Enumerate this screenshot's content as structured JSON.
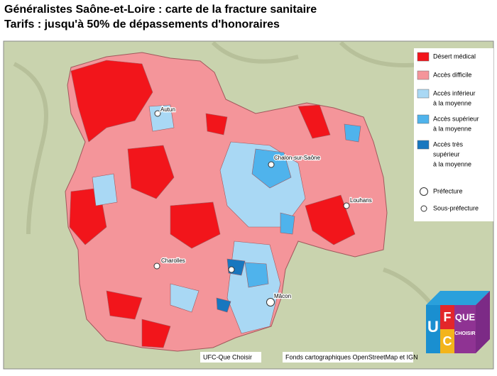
{
  "header": {
    "title": "Généralistes Saône-et-Loire : carte de la fracture sanitaire",
    "subtitle": "Tarifs : jusqu'à 50% de dépassements d'honoraires"
  },
  "legend": {
    "items": [
      {
        "lines": [
          "Désert médical"
        ],
        "color": "#f2151b"
      },
      {
        "lines": [
          "Accès difficile"
        ],
        "color": "#f4959a"
      },
      {
        "lines": [
          "Accès inférieur",
          "à la moyenne"
        ],
        "color": "#a9d8f4"
      },
      {
        "lines": [
          "Accès supérieur",
          "à la moyenne"
        ],
        "color": "#4fb3ec"
      },
      {
        "lines": [
          "Accès très",
          "supérieur",
          "à la moyenne"
        ],
        "color": "#1877bf"
      }
    ],
    "markers": [
      "Préfecture",
      "Sous-préfecture"
    ]
  },
  "cities": [
    "Autun",
    "Chalon-sur-Saône",
    "Louhans",
    "Charolles",
    "Mâcon"
  ],
  "credits": {
    "author": "UFC-Que Choisir",
    "source": "Fonds cartographiques OpenStreetMap et IGN"
  },
  "logo": {
    "letters": [
      "U",
      "F",
      "C"
    ],
    "que": "QUE",
    "choisir": "CHOISIR"
  }
}
